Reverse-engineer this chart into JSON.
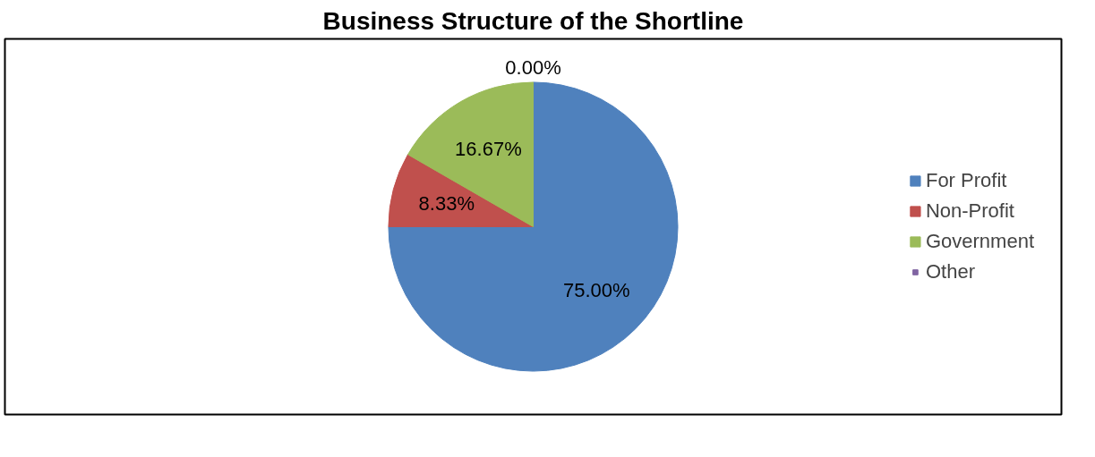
{
  "chart_data": {
    "type": "pie",
    "title": "Business Structure of the Shortline",
    "categories": [
      "For Profit",
      "Non-Profit",
      "Government",
      "Other"
    ],
    "values": [
      75.0,
      8.33,
      16.67,
      0.0
    ],
    "value_labels": [
      "75.00%",
      "8.33%",
      "16.67%",
      "0.00%"
    ],
    "colors": [
      "#4f81bd",
      "#c0504d",
      "#9bbb59",
      "#8064a2"
    ],
    "legend": "right"
  }
}
